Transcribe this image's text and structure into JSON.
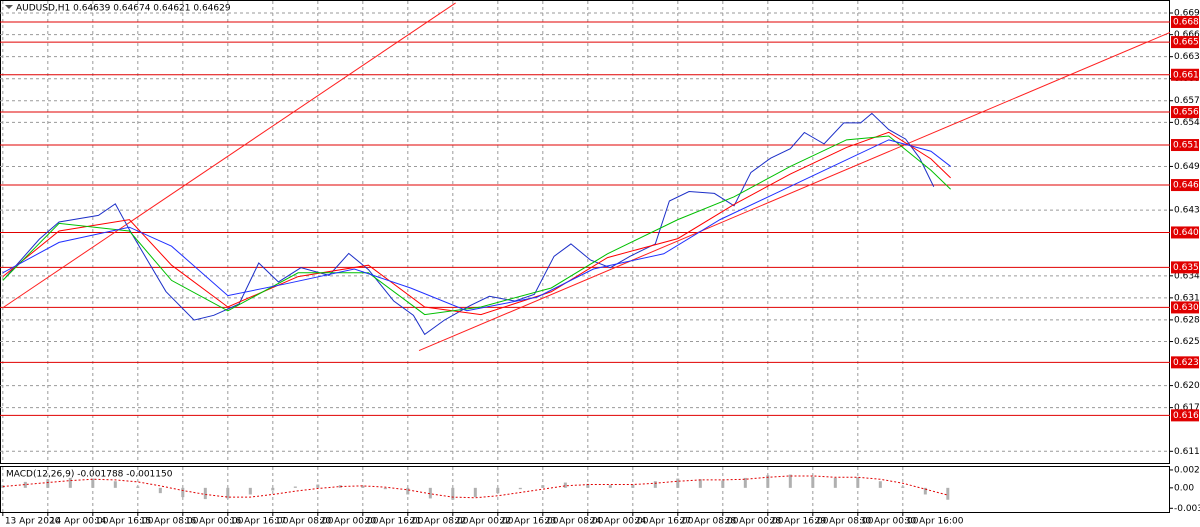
{
  "chart_data": [
    {
      "type": "line",
      "title": "AUDUSD,H1  0.64639 0.64674 0.64621 0.64629",
      "xlim": [
        -1,
        415
      ],
      "ylim": [
        0.60996,
        0.67078
      ],
      "grid": true,
      "xticks": [
        {
          "value": 0,
          "label": "13 Apr 2020"
        },
        {
          "value": 16,
          "label": "14 Apr 00:00"
        },
        {
          "value": 32,
          "label": "14 Apr 16:00"
        },
        {
          "value": 48,
          "label": "15 Apr 08:00"
        },
        {
          "value": 64,
          "label": "16 Apr 00:00"
        },
        {
          "value": 80,
          "label": "16 Apr 16:00"
        },
        {
          "value": 96,
          "label": "17 Apr 08:00"
        },
        {
          "value": 112,
          "label": "20 Apr 00:00"
        },
        {
          "value": 128,
          "label": "20 Apr 16:00"
        },
        {
          "value": 144,
          "label": "21 Apr 08:00"
        },
        {
          "value": 160,
          "label": "22 Apr 00:00"
        },
        {
          "value": 176,
          "label": "22 Apr 16:00"
        },
        {
          "value": 192,
          "label": "23 Apr 08:00"
        },
        {
          "value": 208,
          "label": "24 Apr 00:00"
        },
        {
          "value": 224,
          "label": "24 Apr 16:00"
        },
        {
          "value": 240,
          "label": "27 Apr 08:00"
        },
        {
          "value": 256,
          "label": "28 Apr 00:00"
        },
        {
          "value": 272,
          "label": "28 Apr 16:00"
        },
        {
          "value": 288,
          "label": "29 Apr 08:00"
        },
        {
          "value": 304,
          "label": "30 Apr 00:00"
        },
        {
          "value": 320,
          "label": "30 Apr 16:00"
        }
      ],
      "yticks": [
        {
          "value": 0.6692,
          "label": "0.66920"
        },
        0.66635,
        0.66345,
        0.66055,
        0.65765,
        {
          "value": 0.6548,
          "label": "0.65480"
        },
        {
          "value": 0.649,
          "label": "0.64900"
        },
        0.64325,
        {
          "value": 0.6346,
          "label": "0.63460"
        },
        {
          "value": 0.6317,
          "label": "0.63170"
        },
        {
          "value": 0.6288,
          "label": "0.62880"
        },
        0.62595,
        0.62015,
        0.61725,
        {
          "value": 0.6115,
          "label": "0.61150"
        }
      ],
      "levels": [
        0.66802,
        0.66537,
        0.66107,
        0.65616,
        0.65182,
        0.64655,
        0.64031,
        0.63571,
        0.63044,
        0.62321,
        0.61623
      ],
      "level_color": "#e00000",
      "trendlines": [
        {
          "color": "#ff2020",
          "x": [
            0,
            161
          ],
          "values": [
            0.6304,
            0.67053
          ]
        },
        {
          "color": "#ff2020",
          "x": [
            148,
            415
          ],
          "values": [
            0.62476,
            0.66664
          ]
        }
      ],
      "series": [
        {
          "color": "#1c2fc8",
          "x": [
            1,
            13,
            20,
            34,
            40,
            45,
            52,
            58,
            68,
            75,
            84,
            91,
            98,
            106,
            116,
            123,
            130,
            139,
            146,
            150,
            157,
            166,
            173,
            182,
            189,
            196,
            202,
            209,
            216,
            223,
            232,
            237,
            244,
            253,
            260,
            266,
            273,
            280,
            285,
            292,
            299,
            305,
            309,
            315,
            321,
            326,
            331
          ],
          "values": [
            0.63441,
            0.63943,
            0.64169,
            0.64256,
            0.64407,
            0.64068,
            0.63629,
            0.63253,
            0.62877,
            0.6294,
            0.6309,
            0.63629,
            0.63379,
            0.63567,
            0.63466,
            0.63755,
            0.63542,
            0.63128,
            0.6294,
            0.62689,
            0.62877,
            0.63065,
            0.63191,
            0.63128,
            0.63216,
            0.63717,
            0.6388,
            0.63667,
            0.63567,
            0.63717,
            0.6388,
            0.64445,
            0.6457,
            0.64545,
            0.64382,
            0.64821,
            0.65009,
            0.65134,
            0.65347,
            0.65197,
            0.65473,
            0.65473,
            0.65598,
            0.65385,
            0.6526,
            0.65009,
            0.64633
          ]
        },
        {
          "color": "#ff0000",
          "x": [
            0,
            20,
            45,
            60,
            80,
            105,
            130,
            150,
            170,
            195,
            215,
            240,
            260,
            280,
            300,
            315,
            330,
            337
          ],
          "values": [
            0.6345,
            0.6405,
            0.642,
            0.636,
            0.6305,
            0.6345,
            0.636,
            0.6305,
            0.6295,
            0.6325,
            0.637,
            0.6395,
            0.644,
            0.648,
            0.6515,
            0.6535,
            0.65,
            0.6475
          ]
        },
        {
          "color": "#00c000",
          "x": [
            0,
            20,
            45,
            60,
            80,
            105,
            130,
            150,
            170,
            195,
            215,
            240,
            260,
            280,
            300,
            315,
            330,
            337
          ],
          "values": [
            0.634,
            0.6415,
            0.6405,
            0.634,
            0.63,
            0.635,
            0.635,
            0.6295,
            0.6305,
            0.633,
            0.6375,
            0.642,
            0.645,
            0.649,
            0.6525,
            0.653,
            0.6485,
            0.646
          ]
        },
        {
          "color": "#2030ff",
          "x": [
            0,
            20,
            45,
            60,
            80,
            100,
            125,
            145,
            165,
            190,
            210,
            235,
            255,
            275,
            295,
            315,
            330,
            337
          ],
          "values": [
            0.635,
            0.639,
            0.641,
            0.6385,
            0.632,
            0.6335,
            0.6355,
            0.633,
            0.63,
            0.6318,
            0.6355,
            0.6375,
            0.642,
            0.6455,
            0.649,
            0.6525,
            0.651,
            0.649
          ]
        }
      ]
    },
    {
      "type": "macd",
      "title": "MACD(12,26,9) -0.001788 -0.001150",
      "ylim": [
        -0.0035,
        0.003
      ],
      "yticks": [
        0.002704,
        {
          "value": 0,
          "label": "0.00"
        },
        -0.00309
      ],
      "x": [
        0,
        8,
        16,
        24,
        32,
        40,
        48,
        56,
        64,
        72,
        80,
        88,
        96,
        104,
        112,
        120,
        128,
        136,
        144,
        152,
        160,
        168,
        176,
        184,
        192,
        200,
        208,
        216,
        224,
        232,
        240,
        248,
        256,
        264,
        272,
        280,
        288,
        296,
        304,
        312,
        320,
        328,
        336
      ],
      "series": [
        {
          "type": "bar",
          "color": "#b0b0b0",
          "values": [
            0.0004,
            0.0009,
            0.0013,
            0.0015,
            0.0014,
            0.001,
            0.0002,
            -0.0008,
            -0.0014,
            -0.0017,
            -0.0016,
            -0.001,
            -0.0004,
            0.0002,
            0.0005,
            0.0004,
            0.0003,
            -0.0002,
            -0.001,
            -0.0016,
            -0.0018,
            -0.0014,
            -0.0008,
            -0.0002,
            0.0004,
            0.0008,
            0.0006,
            0.0004,
            0.0005,
            0.001,
            0.0014,
            0.0013,
            0.0011,
            0.0015,
            0.0019,
            0.002,
            0.0017,
            0.0015,
            0.0016,
            0.001,
            0.0002,
            -0.001,
            -0.0018
          ]
        },
        {
          "type": "line",
          "color": "#e00000",
          "values": [
            0.0002,
            0.0005,
            0.0008,
            0.0011,
            0.0013,
            0.0012,
            0.0009,
            0.0003,
            -0.0004,
            -0.001,
            -0.0014,
            -0.0014,
            -0.001,
            -0.0005,
            -0.0001,
            0.0002,
            0.0003,
            0.0001,
            -0.0003,
            -0.0009,
            -0.0014,
            -0.0015,
            -0.0012,
            -0.0007,
            -0.0002,
            0.0003,
            0.0005,
            0.0005,
            0.0005,
            0.0007,
            0.001,
            0.0012,
            0.0012,
            0.0013,
            0.0016,
            0.0018,
            0.0018,
            0.0016,
            0.0016,
            0.0013,
            0.0007,
            -0.0002,
            -0.0011
          ]
        }
      ]
    }
  ]
}
